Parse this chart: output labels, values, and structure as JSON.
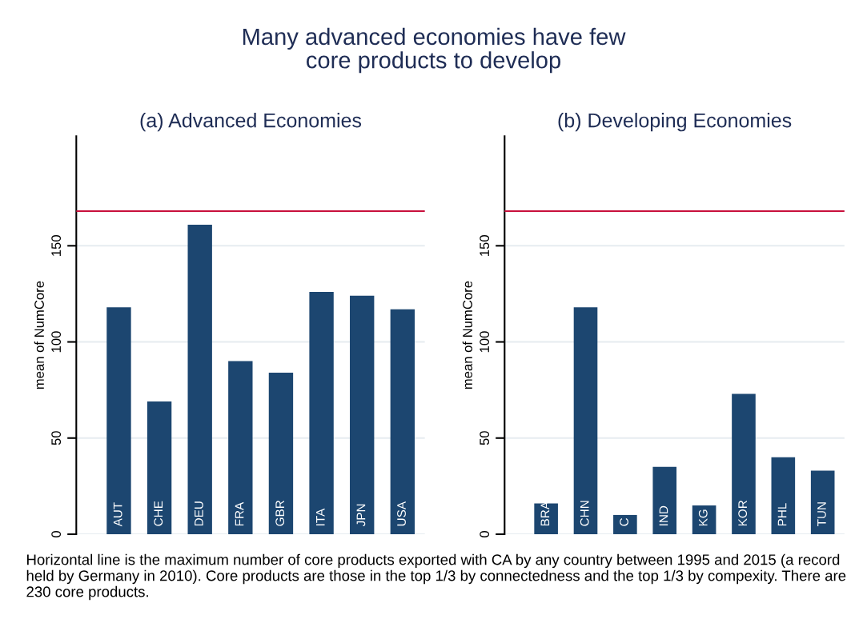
{
  "chart_data": [
    {
      "type": "bar",
      "title": "(a) Advanced Economies",
      "ylabel": "mean of NumCore",
      "categories": [
        "AUT",
        "CHE",
        "DEU",
        "FRA",
        "GBR",
        "ITA",
        "JPN",
        "USA"
      ],
      "values": [
        118,
        69,
        161,
        90,
        84,
        126,
        124,
        117
      ],
      "color": "#1c4670",
      "ylim": [
        0,
        207
      ],
      "yticks": [
        0,
        50,
        100,
        150
      ],
      "grid": "y",
      "ref_lines": [
        {
          "axis": "y",
          "value": 168,
          "color": "#c8103c"
        }
      ],
      "annotations": [
        "Many advanced economies have few\ncore products to develop",
        "Horizontal line is the maximum number of core products exported with CA by any country between 1995 and 2015 (a record held by Germany in 2010). Core products are those in the top 1/3 by connectedness and the top 1/3 by compexity. There are 230 core products."
      ]
    },
    {
      "type": "bar",
      "title": "(b) Developing Economies",
      "ylabel": "mean of NumCore",
      "categories": [
        "BRA",
        "CHN",
        "C",
        "IND",
        "KG",
        "KOR",
        "PHL",
        "TUN"
      ],
      "values": [
        16,
        118,
        10,
        35,
        15,
        73,
        40,
        33
      ],
      "color": "#1c4670",
      "ylim": [
        0,
        207
      ],
      "yticks": [
        0,
        50,
        100,
        150
      ],
      "grid": "y",
      "ref_lines": [
        {
          "axis": "y",
          "value": 168,
          "color": "#c8103c"
        }
      ]
    }
  ]
}
